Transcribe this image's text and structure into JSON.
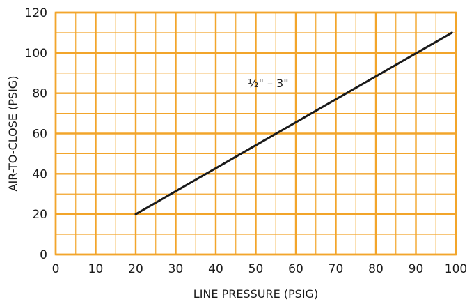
{
  "chart_data": {
    "type": "line",
    "xlabel": "LINE PRESSURE (PSIG)",
    "ylabel": "AIR-TO-CLOSE (PSIG)",
    "xlim": [
      0,
      100
    ],
    "ylim": [
      0,
      120
    ],
    "x_ticks": [
      0,
      10,
      20,
      30,
      40,
      50,
      60,
      70,
      80,
      90,
      100
    ],
    "y_ticks": [
      0,
      20,
      40,
      60,
      80,
      100,
      120
    ],
    "grid": true,
    "minor_grid": true,
    "series": [
      {
        "name": "½\" – 3\"",
        "x": [
          20,
          99
        ],
        "y": [
          20,
          110
        ]
      }
    ],
    "annotations": [
      {
        "text": "½\" – 3\"",
        "x": 48,
        "y": 83
      }
    ]
  },
  "colors": {
    "grid_major": "#f2a52b",
    "grid_minor": "#f2a52b",
    "frame": "#f2a52b",
    "line": "#1a1a1a",
    "text": "#1a1a1a"
  }
}
